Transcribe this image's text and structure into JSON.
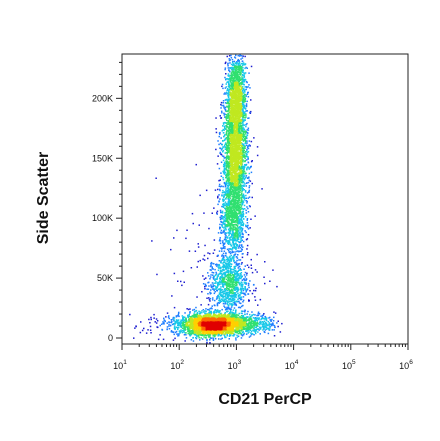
{
  "chart_data": {
    "type": "scatter",
    "style": "density-colored flow cytometry dot plot",
    "xlabel": "CD21 PerCP",
    "ylabel": "Side Scatter",
    "x_scale": "log",
    "xlim": [
      10,
      1000000
    ],
    "x_ticks": [
      {
        "value": 10,
        "base": "10",
        "exp": "1"
      },
      {
        "value": 100,
        "base": "10",
        "exp": "2"
      },
      {
        "value": 1000,
        "base": "10",
        "exp": "3"
      },
      {
        "value": 10000,
        "base": "10",
        "exp": "4"
      },
      {
        "value": 100000,
        "base": "10",
        "exp": "5"
      },
      {
        "value": 1000000,
        "base": "10",
        "exp": "6"
      }
    ],
    "y_scale": "linear",
    "ylim": [
      -5000,
      237000
    ],
    "y_ticks": [
      {
        "value": 0,
        "label": "0"
      },
      {
        "value": 50000,
        "label": "50K"
      },
      {
        "value": 100000,
        "label": "100K"
      },
      {
        "value": 150000,
        "label": "150K"
      },
      {
        "value": 200000,
        "label": "200K"
      }
    ],
    "populations": [
      {
        "x": 380,
        "y": 11000,
        "sx": 0.28,
        "sy": 4500,
        "n": 2600
      },
      {
        "x": 1500,
        "y": 12000,
        "sx": 0.25,
        "sy": 4000,
        "n": 500
      },
      {
        "x": 720,
        "y": 45000,
        "sx": 0.17,
        "sy": 13000,
        "n": 900
      },
      {
        "x": 850,
        "y": 95000,
        "sx": 0.11,
        "sy": 15000,
        "n": 600
      },
      {
        "x": 950,
        "y": 150000,
        "sx": 0.11,
        "sy": 28000,
        "n": 2600
      },
      {
        "x": 1000,
        "y": 205000,
        "sx": 0.08,
        "sy": 18000,
        "n": 1100
      },
      {
        "x": 200,
        "y": 10000,
        "sx": 0.45,
        "sy": 6000,
        "n": 250
      },
      {
        "x": 500,
        "y": 60000,
        "sx": 0.45,
        "sy": 40000,
        "n": 120
      }
    ],
    "density_colors": [
      "#1f1fd0",
      "#1f7fff",
      "#18c8e8",
      "#30e070",
      "#c0e820",
      "#ffd000",
      "#ff6a00",
      "#e00000"
    ],
    "grid": false,
    "legend": "none"
  }
}
